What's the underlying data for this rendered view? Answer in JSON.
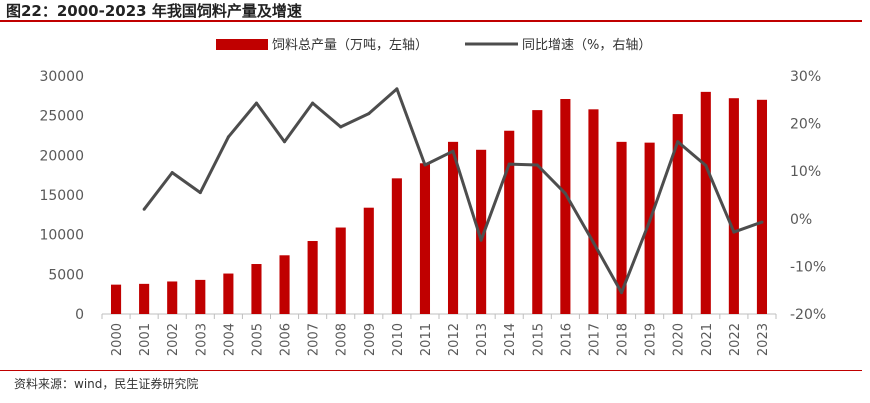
{
  "title": "图22：2000-2023 年我国饲料产量及增速",
  "source": "资料来源：wind，民生证券研究院",
  "colors": {
    "bar": "#c00000",
    "line": "#4d4d4d",
    "axis": "#bfbfbf",
    "text": "#595959",
    "accent": "#c00000"
  },
  "chart_data": {
    "type": "bar+line",
    "categories": [
      "2000",
      "2001",
      "2002",
      "2003",
      "2004",
      "2005",
      "2006",
      "2007",
      "2008",
      "2009",
      "2010",
      "2011",
      "2012",
      "2013",
      "2014",
      "2015",
      "2016",
      "2017",
      "2018",
      "2019",
      "2020",
      "2021",
      "2022",
      "2023"
    ],
    "series": [
      {
        "name": "饲料总产量（万吨，左轴）",
        "type": "bar",
        "axis": "left",
        "values": [
          3700,
          3800,
          4100,
          4300,
          5100,
          6300,
          7400,
          9200,
          10900,
          13400,
          17100,
          19000,
          21700,
          20700,
          23100,
          25700,
          27100,
          25800,
          21700,
          21600,
          25200,
          28000,
          27200,
          27000
        ]
      },
      {
        "name": "同比增速（%，右轴）",
        "type": "line",
        "axis": "right",
        "values": [
          null,
          2,
          9.7,
          5.5,
          17.2,
          24.3,
          16.2,
          24.3,
          19.3,
          22.1,
          27.3,
          11.3,
          14.2,
          -4.5,
          11.5,
          11.3,
          5.3,
          -5,
          -15.5,
          -0.5,
          16.2,
          11.2,
          -2.8,
          -0.7
        ]
      }
    ],
    "left_axis": {
      "min": 0,
      "max": 30000,
      "ticks": [
        "0",
        "5000",
        "10000",
        "15000",
        "20000",
        "25000",
        "30000"
      ]
    },
    "right_axis": {
      "min": -20,
      "max": 30,
      "ticks": [
        "-20%",
        "-10%",
        "0%",
        "10%",
        "20%",
        "30%"
      ]
    },
    "legend": [
      "饲料总产量（万吨，左轴）",
      "同比增速（%，右轴）"
    ],
    "legend_position": "top-center",
    "grid": false
  }
}
